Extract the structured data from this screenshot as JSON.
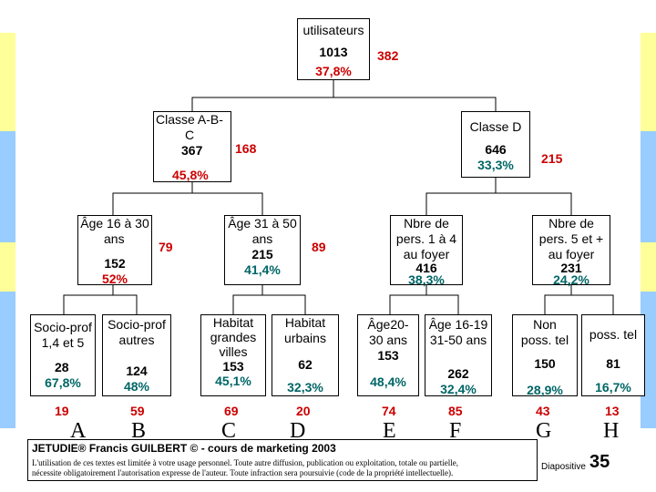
{
  "root": {
    "title": "utilisateurs",
    "count": "1013",
    "pct": "37,8%",
    "other": "382"
  },
  "classABC": {
    "line1": "Classe A-B-",
    "line2": "C",
    "count": "367",
    "pct": "45,8%",
    "side": "168"
  },
  "classD": {
    "title": "Classe D",
    "count": "646",
    "pct": "33,3%",
    "side": "215"
  },
  "n1": {
    "line1": "Âge 16 à 30",
    "line2": "ans",
    "count": "152",
    "pct": "52%",
    "side": "79"
  },
  "n2": {
    "line1": "Âge 31 à 50",
    "line2": "ans",
    "count": "215",
    "pct": "41,4%",
    "side": "89"
  },
  "n3": {
    "line1": "Nbre de",
    "line2": "pers. 1 à 4",
    "line3": "au foyer",
    "count": "416",
    "pct": "38,3%"
  },
  "n4": {
    "line1": "Nbre de",
    "line2": "pers. 5 et +",
    "line3": "au foyer",
    "count": "231",
    "pct": "24,2%"
  },
  "leaves": [
    {
      "line1": "Socio-prof",
      "line2": "1,4 et 5",
      "count": "28",
      "pct": "67,8%",
      "bottom": "19",
      "letter": "A"
    },
    {
      "line1": "Socio-prof",
      "line2": "autres",
      "count": "124",
      "pct": "48%",
      "bottom": "59",
      "letter": "B"
    },
    {
      "line1": "Habitat",
      "line2": "grandes",
      "line3": "villes",
      "count": "153",
      "pct": "45,1%",
      "bottom": "69",
      "letter": "C"
    },
    {
      "line1": "Habitat",
      "line2": "urbains",
      "count": "62",
      "pct": "32,3%",
      "bottom": "20",
      "letter": "D"
    },
    {
      "line1": "Âge20-",
      "line2": "30 ans",
      "count": "153",
      "pct": "48,4%",
      "bottom": "74",
      "letter": "E"
    },
    {
      "line1": "Âge 16-19",
      "line2": "31-50 ans",
      "count": "262",
      "pct": "32,4%",
      "bottom": "85",
      "letter": "F"
    },
    {
      "line1": "Non",
      "line2": "poss. tel",
      "count": "150",
      "pct": "28,9%",
      "bottom": "43",
      "letter": "G"
    },
    {
      "line1": "poss. tel",
      "count": "81",
      "pct": "16,7%",
      "bottom": "13",
      "letter": "H"
    }
  ],
  "footer": {
    "credit": "JETUDIE® Francis GUILBERT © - cours de marketing 2003",
    "legal1": "L'utilisation de ces textes est limitée à votre usage personnel. Toute autre diffusion, publication ou exploitation, totale ou partielle,",
    "legal2": "nécessite obligatoirement l'autorisation expresse de l'auteur. Toute infraction sera poursuivie (code de la propriété intellectuelle)."
  },
  "slide": {
    "label": "Diapositive",
    "number": "35"
  }
}
